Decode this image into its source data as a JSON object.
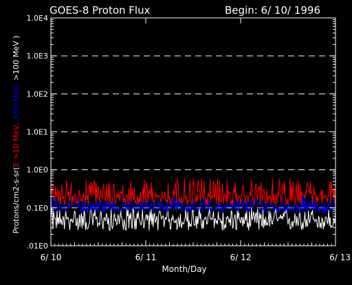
{
  "colors": {
    "background": "#000000",
    "axes": "#ffffff",
    "grid": "#ffffff",
    "series_total": "#ffffff",
    "series_e10": "#ff0000",
    "series_e50": "#0000ff",
    "series_e100": "#ffffff"
  },
  "chart_data": {
    "type": "line",
    "title": "GOES-8 Proton Flux",
    "begin_label": "Begin: 6/ 10/ 1996",
    "xlabel": "Month/Day",
    "ylabel_parts": [
      {
        "text": "Protons/cm2-s-sr(",
        "color": "#ffffff"
      },
      {
        "text": "E >10 MeV,",
        "color": "#ff0000"
      },
      {
        "text": " >50 MeV,",
        "color": "#0000ff"
      },
      {
        "text": " >100 MeV )",
        "color": "#ffffff"
      }
    ],
    "y_scale": "log",
    "ylim": [
      0.01,
      10000
    ],
    "y_ticks": [
      {
        "value": 0.01,
        "label": ".01E0"
      },
      {
        "value": 0.1,
        "label": "0.1E0"
      },
      {
        "value": 1,
        "label": "1.0E0"
      },
      {
        "value": 10,
        "label": "1.0E1"
      },
      {
        "value": 100,
        "label": "1.0E2"
      },
      {
        "value": 1000,
        "label": "1.0E3"
      },
      {
        "value": 10000,
        "label": "1.0E4"
      }
    ],
    "gridlines_at": [
      0.1,
      1,
      10,
      100,
      1000
    ],
    "x_range_days": [
      0,
      3
    ],
    "x_ticks": [
      {
        "value": 0,
        "label": "6/ 10"
      },
      {
        "value": 1,
        "label": "6/ 11"
      },
      {
        "value": 2,
        "label": "6/ 12"
      },
      {
        "value": 3,
        "label": "6/ 13"
      }
    ],
    "series": [
      {
        "name": "E >10 MeV",
        "color": "#ff0000",
        "typical": 0.2,
        "range": [
          0.12,
          0.6
        ]
      },
      {
        "name": ">50 MeV",
        "color": "#0000ff",
        "typical": 0.11,
        "range": [
          0.07,
          0.2
        ]
      },
      {
        "name": ">100 MeV",
        "color": "#ffffff",
        "typical": 0.05,
        "range": [
          0.025,
          0.1
        ]
      }
    ]
  }
}
